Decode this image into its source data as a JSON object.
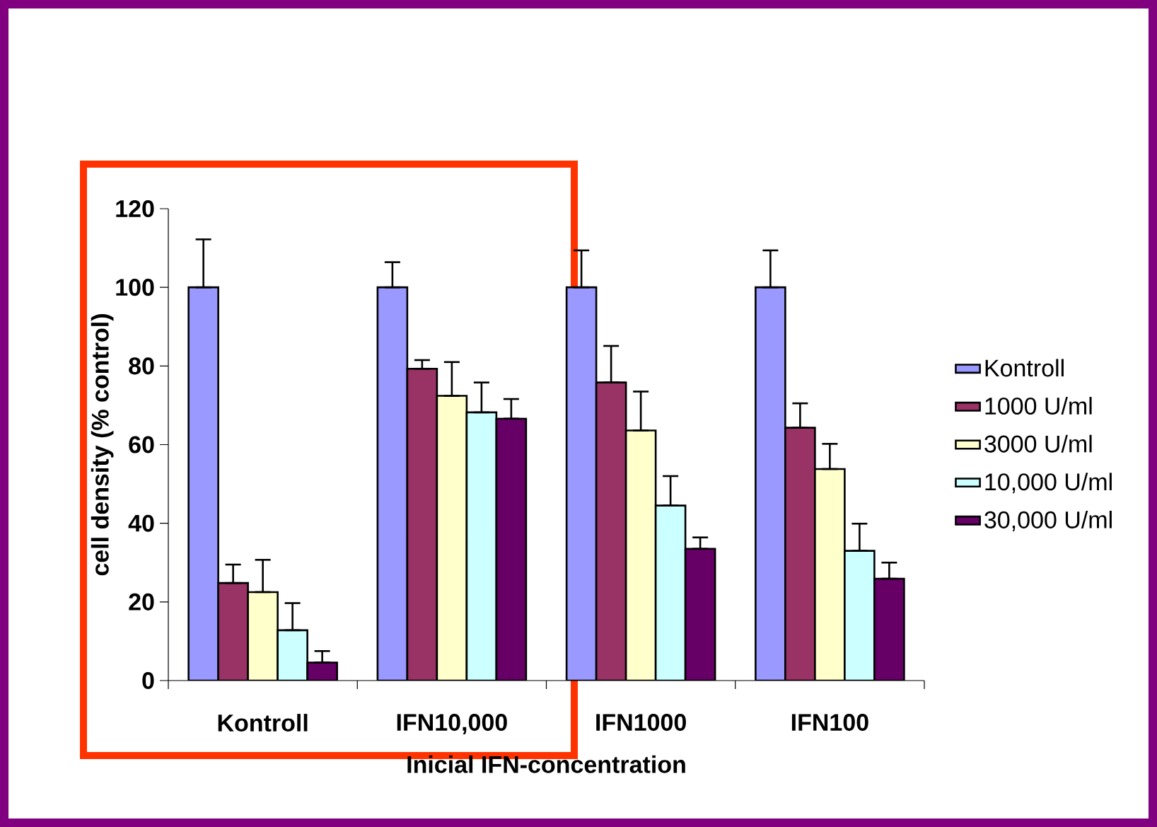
{
  "chart_data": {
    "type": "bar",
    "xlabel": "Inicial IFN-concentration",
    "ylabel": "cell density (% control)",
    "categories": [
      "Kontroll",
      "IFN10,000",
      "IFN1000",
      "IFN100"
    ],
    "ylim": [
      0,
      120
    ],
    "yticks": [
      0,
      20,
      40,
      60,
      80,
      100,
      120
    ],
    "legend": "right",
    "grid": false,
    "series": [
      {
        "name": "Kontroll",
        "color": "#9999ff",
        "values": [
          100,
          100,
          100,
          100
        ],
        "errors": [
          [
            100,
            112.2
          ],
          [
            100,
            106.4
          ],
          [
            100,
            109.4
          ],
          [
            100,
            109.4
          ]
        ]
      },
      {
        "name": "1000 U/ml",
        "color": "#993366",
        "values": [
          24.8,
          79.3,
          75.8,
          64.3
        ],
        "errors": [
          [
            24.8,
            29.5
          ],
          [
            79.3,
            81.5
          ],
          [
            75.8,
            85.1
          ],
          [
            64.3,
            70.5
          ]
        ]
      },
      {
        "name": "3000 U/ml",
        "color": "#ffffcc",
        "values": [
          22.5,
          72.4,
          63.6,
          53.8
        ],
        "errors": [
          [
            22.5,
            30.7
          ],
          [
            72.4,
            81.0
          ],
          [
            63.6,
            73.5
          ],
          [
            53.8,
            60.2
          ]
        ]
      },
      {
        "name": "10,000 U/ml",
        "color": "#ccffff",
        "values": [
          12.8,
          68.2,
          44.5,
          33.0
        ],
        "errors": [
          [
            12.8,
            19.7
          ],
          [
            68.2,
            75.8
          ],
          [
            44.5,
            52.0
          ],
          [
            33.0,
            39.9
          ]
        ]
      },
      {
        "name": "30,000 U/ml",
        "color": "#660066",
        "values": [
          4.6,
          66.6,
          33.5,
          25.9
        ],
        "errors": [
          [
            4.6,
            7.5
          ],
          [
            66.6,
            71.6
          ],
          [
            33.5,
            36.4
          ],
          [
            25.9,
            30.0
          ]
        ]
      }
    ]
  }
}
